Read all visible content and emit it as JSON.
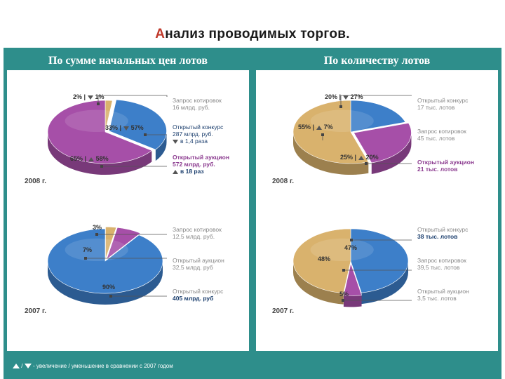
{
  "title": "Анализ проводимых торгов.",
  "title_first_letter": "А",
  "title_rest": "нализ проводимых торгов.",
  "colors": {
    "blue": "#3d7fc9",
    "purple": "#a64fa8",
    "gold": "#d9b26d",
    "frame": "#2e8e8b"
  },
  "panels": {
    "left_header": "По сумме начальных цен лотов",
    "right_header": "По количеству лотов"
  },
  "chart_data": [
    {
      "type": "pie",
      "title": "",
      "year": "2008 г.",
      "slices": [
        {
          "value": 2,
          "color": "#d9b26d",
          "label": "2% |",
          "change": "1%",
          "change_dir": "down"
        },
        {
          "value": 33,
          "color": "#3d7fc9",
          "label": "33% |",
          "change": "57%",
          "change_dir": "down"
        },
        {
          "value": 65,
          "color": "#a64fa8",
          "label": "65% |",
          "change": "58%",
          "change_dir": "up"
        }
      ],
      "legend": [
        {
          "lines": [
            "Запрос котировок",
            "16 млрд. руб."
          ],
          "color": "gray"
        },
        {
          "lines": [
            "Открытый конкурс",
            "287 млрд. руб."
          ],
          "extra": "в 1,4 раза",
          "extra_dir": "down",
          "color": "blue"
        },
        {
          "lines": [
            "Открытый аукцион",
            "572 млрд. руб."
          ],
          "extra": "в 18 раз",
          "extra_dir": "up",
          "color": "purple"
        }
      ]
    },
    {
      "type": "pie",
      "title": "",
      "year": "2007 г.",
      "slices": [
        {
          "value": 3,
          "color": "#d9b26d",
          "label": "3%"
        },
        {
          "value": 7,
          "color": "#a64fa8",
          "label": "7%"
        },
        {
          "value": 90,
          "color": "#3d7fc9",
          "label": "90%"
        }
      ],
      "legend": [
        {
          "lines": [
            "Запрос котировок",
            "12,5 млрд. руб."
          ],
          "color": "gray"
        },
        {
          "lines": [
            "Открытый аукцион",
            "32,5 млрд. руб"
          ],
          "color": "gray"
        },
        {
          "lines": [
            "Открытый конкурс",
            "405 млрд. руб"
          ],
          "color": "gray"
        }
      ]
    },
    {
      "type": "pie",
      "title": "",
      "year": "2008 г.",
      "slices": [
        {
          "value": 20,
          "color": "#3d7fc9",
          "label": "20% |",
          "change": "27%",
          "change_dir": "down"
        },
        {
          "value": 25,
          "color": "#a64fa8",
          "label": "25% |",
          "change": "20%",
          "change_dir": "up"
        },
        {
          "value": 55,
          "color": "#d9b26d",
          "label": "55% |",
          "change": "7%",
          "change_dir": "up"
        }
      ],
      "legend": [
        {
          "lines": [
            "Открытый конкурс",
            "17 тыс. лотов"
          ],
          "color": "gray"
        },
        {
          "lines": [
            "Запрос котировок",
            "45 тыс. лотов"
          ],
          "color": "gray"
        },
        {
          "lines": [
            "Открытый аукцион",
            "21 тыс. лотов"
          ],
          "color": "purple"
        }
      ]
    },
    {
      "type": "pie",
      "title": "",
      "year": "2007 г.",
      "slices": [
        {
          "value": 47,
          "color": "#3d7fc9",
          "label": "47%"
        },
        {
          "value": 5,
          "color": "#a64fa8",
          "label": "5%"
        },
        {
          "value": 48,
          "color": "#d9b26d",
          "label": "48%"
        }
      ],
      "legend": [
        {
          "lines": [
            "Открытый конкурс",
            "38 тыс. лотов"
          ],
          "color": "gray"
        },
        {
          "lines": [
            "Запрос котировок",
            "39,5 тыс. лотов"
          ],
          "color": "gray"
        },
        {
          "lines": [
            "Открытый аукцион",
            "3,5 тыс. лотов"
          ],
          "color": "gray"
        }
      ]
    }
  ],
  "footnote": "- увеличение / уменьшение в сравнении с 2007 годом",
  "footnote_sep": "/"
}
